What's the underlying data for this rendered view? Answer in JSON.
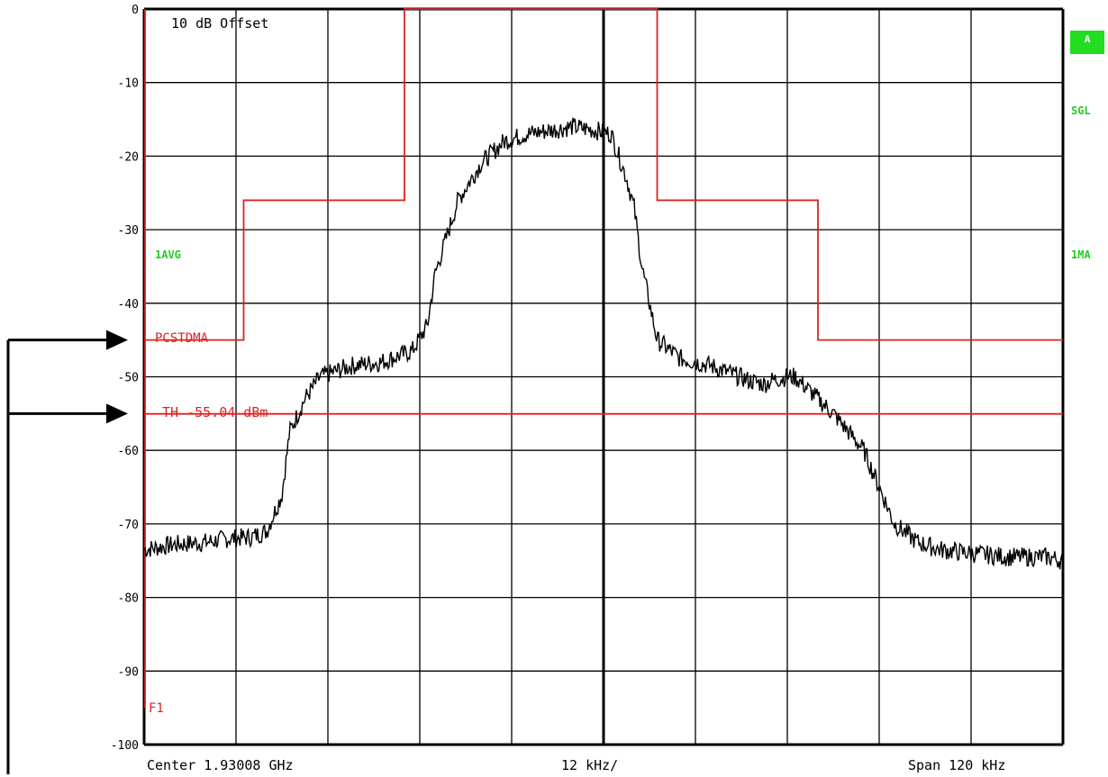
{
  "header": {
    "offset_label": "10 dB Offset"
  },
  "status": {
    "a_badge": "A",
    "sgl": "SGL",
    "avg": "1AVG",
    "ma": "1MA",
    "f1": "F1",
    "badge_color": "#22dd22"
  },
  "footer": {
    "center": "Center 1.93008 GHz",
    "per_div": "12 kHz/",
    "span": "Span 120 kHz"
  },
  "colors": {
    "trace": "#000000",
    "limit": "#dd2222",
    "grid": "#000000",
    "label_green": "#22cc22"
  },
  "chart_data": {
    "type": "line",
    "xlim": [
      1.93002,
      1.93014
    ],
    "xunit": "GHz",
    "ylim": [
      -100,
      0
    ],
    "yunit": "dB",
    "y_ticks": [
      0,
      -10,
      -20,
      -30,
      -40,
      -50,
      -60,
      -70,
      -80,
      -90,
      -100
    ],
    "y_tick_labels": [
      "0",
      "-10",
      "-20",
      "-30",
      "-40",
      "-50",
      "-60",
      "-70",
      "-80",
      "-90",
      "-100"
    ],
    "grid": true,
    "x_divisions": 10,
    "limit_line": {
      "name": "PCSTDMA",
      "x": [
        1.93002,
        1.930033,
        1.930033,
        1.930054,
        1.930054,
        1.930087,
        1.930087,
        1.930108,
        1.930108,
        1.93014
      ],
      "y": [
        -45,
        -45,
        -26,
        -26,
        0,
        0,
        -26,
        -26,
        -45,
        -45
      ]
    },
    "threshold": {
      "label": "TH -55.04 dBm",
      "value": -55.04
    },
    "series": [
      {
        "x": [
          1.93002,
          1.930024,
          1.930028,
          1.930031,
          1.930034,
          1.930036,
          1.930038,
          1.930039,
          1.930041,
          1.930043,
          1.930047,
          1.930051,
          1.930055,
          1.930057,
          1.930058,
          1.930061,
          1.930064,
          1.930067,
          1.93007,
          1.930073,
          1.930076,
          1.930079,
          1.930081,
          1.930082,
          1.930083,
          1.930084,
          1.930085,
          1.930087,
          1.93009,
          1.930094,
          1.930099,
          1.930101,
          1.930102,
          1.930104,
          1.930105,
          1.930107,
          1.93011,
          1.930114,
          1.930118,
          1.930121,
          1.930124,
          1.930128,
          1.930133,
          1.930138,
          1.93014
        ],
        "y": [
          -73.5,
          -72.8,
          -72.5,
          -72.0,
          -71.8,
          -71.0,
          -66.0,
          -57.5,
          -53.0,
          -50.0,
          -48.5,
          -48.0,
          -46.5,
          -43.0,
          -36.0,
          -26.0,
          -21.0,
          -18.0,
          -17.0,
          -16.5,
          -16.0,
          -16.5,
          -17.0,
          -20.0,
          -23.0,
          -27.0,
          -35.0,
          -45.0,
          -47.5,
          -48.5,
          -50.5,
          -51.0,
          -50.5,
          -50.0,
          -50.0,
          -52.0,
          -55.0,
          -60.0,
          -70.0,
          -72.5,
          -73.5,
          -74.0,
          -74.5,
          -74.5,
          -75.0
        ]
      }
    ]
  }
}
